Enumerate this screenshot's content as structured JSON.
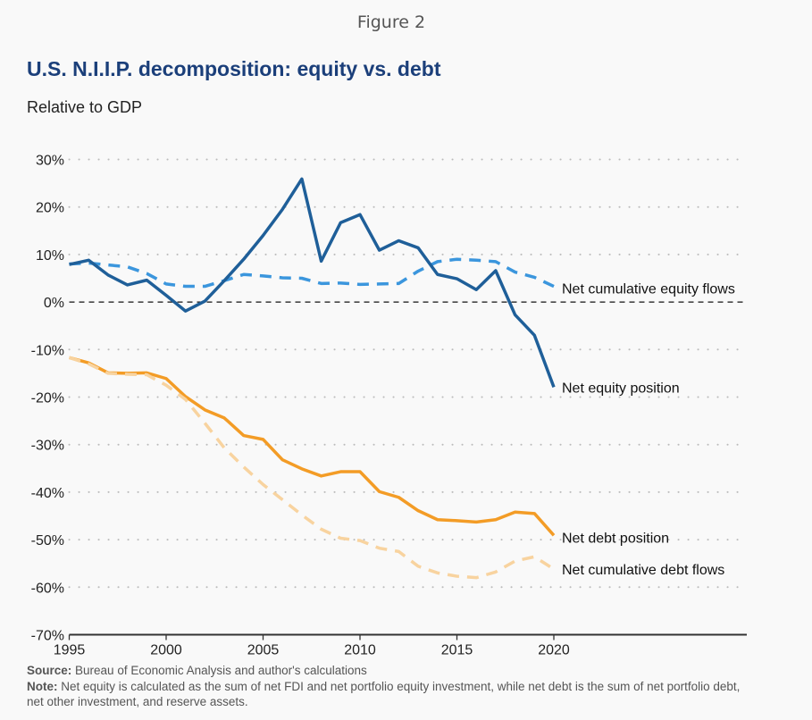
{
  "figure_label": "Figure 2",
  "title": "U.S. N.I.I.P. decomposition: equity vs. debt",
  "subtitle": "Relative to GDP",
  "footer": {
    "source_label": "Source:",
    "source_text": "Bureau of Economic Analysis and author's calculations",
    "note_label": "Note:",
    "note_text": "Net equity is calculated as the sum of net FDI and net portfolio equity investment, while net debt is the sum of net portfolio debt, net other investment, and reserve assets."
  },
  "chart_data": {
    "type": "line",
    "title": "U.S. N.I.I.P. decomposition: equity vs. debt",
    "subtitle": "Relative to GDP",
    "xlabel": "",
    "ylabel": "",
    "xlim": [
      1995,
      2030
    ],
    "ylim": [
      -70,
      30
    ],
    "x_ticks": [
      1995,
      2000,
      2005,
      2010,
      2015,
      2020
    ],
    "x_tick_labels": [
      "1995",
      "2000",
      "2005",
      "2010",
      "2015",
      "2020"
    ],
    "y_ticks": [
      30,
      20,
      10,
      0,
      -10,
      -20,
      -30,
      -40,
      -50,
      -60,
      -70
    ],
    "y_tick_labels": [
      "30%",
      "20%",
      "10%",
      "0%",
      "-10%",
      "-20%",
      "-30%",
      "-40%",
      "-50%",
      "-60%",
      "-70%"
    ],
    "grid": "horizontal-dotted",
    "zero_line": true,
    "legend": "direct-labels-right",
    "x": [
      1995,
      1996,
      1997,
      1998,
      1999,
      2000,
      2001,
      2002,
      2003,
      2004,
      2005,
      2006,
      2007,
      2008,
      2009,
      2010,
      2011,
      2012,
      2013,
      2014,
      2015,
      2016,
      2017,
      2018,
      2019,
      2020
    ],
    "series": [
      {
        "name": "Net cumulative equity flows",
        "style": "dashed",
        "color": "#3b96dd",
        "values": [
          8.0,
          8.2,
          7.8,
          7.4,
          6.0,
          3.8,
          3.3,
          3.3,
          4.5,
          5.8,
          5.5,
          5.1,
          5.0,
          3.9,
          4.0,
          3.7,
          3.8,
          3.9,
          6.5,
          8.5,
          9.0,
          8.8,
          8.5,
          6.3,
          5.2,
          3.3
        ]
      },
      {
        "name": "Net equity position",
        "style": "solid",
        "color": "#1f5f99",
        "values": [
          7.9,
          8.8,
          5.7,
          3.6,
          4.6,
          1.4,
          -1.9,
          0.2,
          4.5,
          9.0,
          14.0,
          19.5,
          25.9,
          8.6,
          16.7,
          18.4,
          10.9,
          12.9,
          11.4,
          5.8,
          4.9,
          2.6,
          6.6,
          -2.7,
          -7.0,
          -17.9
        ]
      },
      {
        "name": "Net debt position",
        "style": "solid",
        "color": "#f39c26",
        "values": [
          -11.7,
          -12.8,
          -14.9,
          -15.0,
          -14.9,
          -16.1,
          -19.9,
          -22.7,
          -24.4,
          -28.1,
          -28.9,
          -33.2,
          -35.1,
          -36.6,
          -35.7,
          -35.7,
          -39.9,
          -41.1,
          -43.9,
          -45.8,
          -46.0,
          -46.3,
          -45.8,
          -44.2,
          -44.5,
          -49.1
        ]
      },
      {
        "name": "Net cumulative debt flows",
        "style": "dashed",
        "color": "#f8d39f",
        "values": [
          -11.7,
          -13.0,
          -15.0,
          -15.2,
          -15.3,
          -17.5,
          -20.5,
          -25.5,
          -30.7,
          -34.7,
          -38.4,
          -41.6,
          -44.8,
          -47.8,
          -49.7,
          -50.2,
          -51.8,
          -52.5,
          -55.6,
          -57.0,
          -57.7,
          -58.0,
          -56.8,
          -54.5,
          -53.6,
          -56.2
        ]
      }
    ]
  }
}
